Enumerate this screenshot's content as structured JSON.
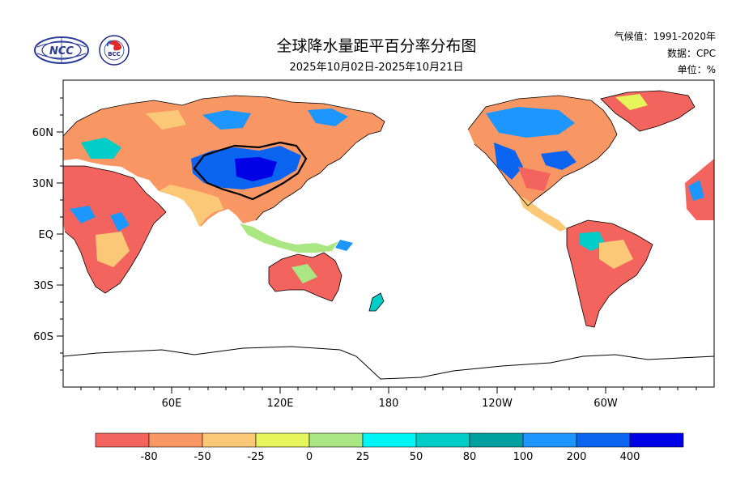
{
  "title": "全球降水量距平百分率分布图",
  "subtitle": "2025年10月02日-2025年10月21日",
  "meta": {
    "climate": "气候值：1991-2020年",
    "source": "数据：CPC",
    "unit": "单位：%"
  },
  "logos": {
    "left": "NCC",
    "right": "BCC"
  },
  "axes": {
    "lat_labels": [
      "60N",
      "30N",
      "EQ",
      "30S",
      "60S"
    ],
    "lon_labels": [
      "60E",
      "120E",
      "180",
      "120W",
      "60W"
    ]
  },
  "legend": {
    "labels": [
      "-80",
      "-50",
      "-25",
      "0",
      "25",
      "50",
      "80",
      "100",
      "200",
      "400"
    ],
    "colors": [
      "#f4645f",
      "#f89664",
      "#fbc878",
      "#e6f55a",
      "#aae682",
      "#00f5f5",
      "#00cdc8",
      "#00a0a0",
      "#1e96ff",
      "#0a64f0",
      "#0000e6"
    ]
  }
}
